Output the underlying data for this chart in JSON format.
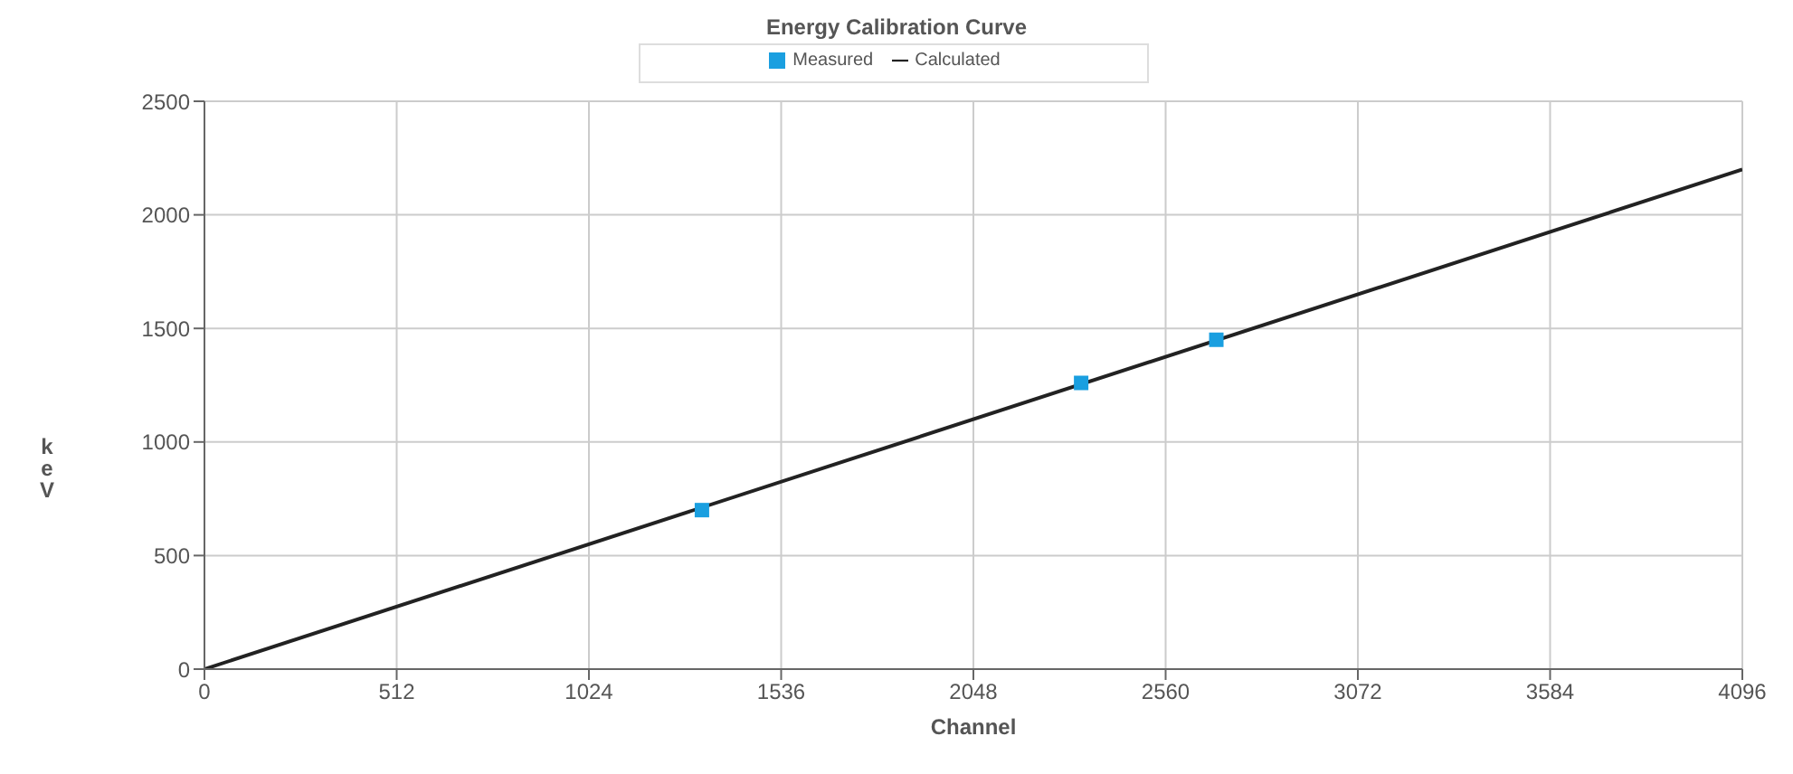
{
  "chart_data": {
    "type": "scatter",
    "title": "Energy Calibration Curve",
    "xlabel": "Channel",
    "ylabel": "keV",
    "series": [
      {
        "name": "Measured",
        "color": "#1a9fe0",
        "marker": "square",
        "x": [
          1325,
          2335,
          2695
        ],
        "values": [
          700,
          1260,
          1450
        ]
      },
      {
        "name": "Calculated",
        "type": "line",
        "color": "#222222",
        "x": [
          0,
          4096
        ],
        "values": [
          0,
          2200
        ]
      }
    ],
    "xlim": [
      0,
      4096
    ],
    "xticks": [
      0,
      512,
      1024,
      1536,
      2048,
      2560,
      3072,
      3584,
      4096
    ],
    "ylim": [
      0,
      2500
    ],
    "yticks": [
      0,
      500,
      1000,
      1500,
      2000,
      2500
    ],
    "grid": true,
    "legend": "top",
    "line_style": "solid"
  }
}
